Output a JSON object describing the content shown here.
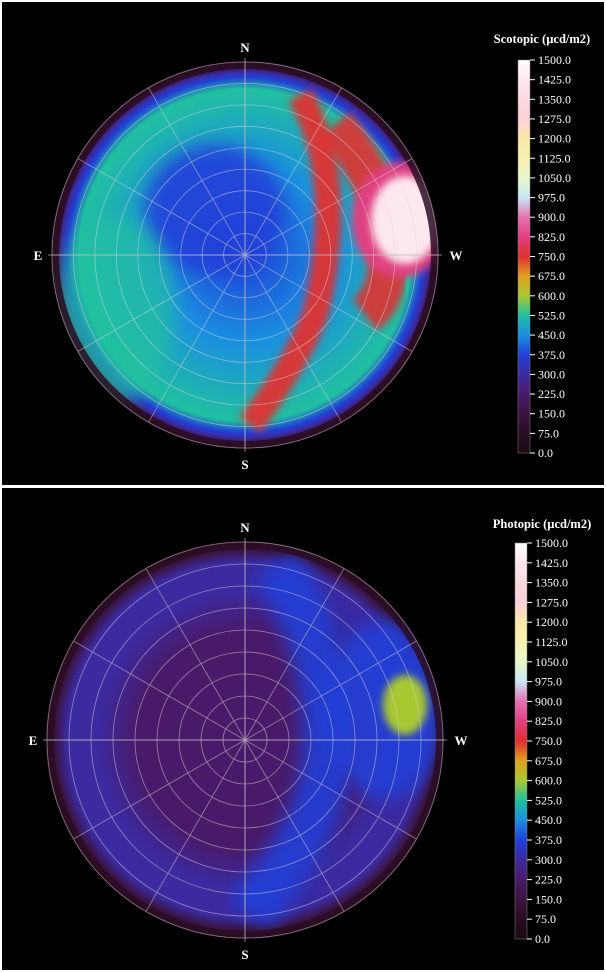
{
  "chart_data": [
    {
      "type": "heatmap",
      "projection": "polar-fisheye-sky",
      "title": "Scotopic (µcd/m2)",
      "compass": {
        "n": "N",
        "s": "S",
        "e": "E",
        "w": "W"
      },
      "scale": {
        "min": 0,
        "max": 1500,
        "ticks": [
          "1500.0",
          "1425.0",
          "1350.0",
          "1275.0",
          "1200.0",
          "1125.0",
          "1050.0",
          "975.0",
          "900.0",
          "825.0",
          "750.0",
          "675.0",
          "600.0",
          "525.0",
          "450.0",
          "375.0",
          "300.0",
          "225.0",
          "150.0",
          "75.0",
          "0.0"
        ]
      },
      "grid": true,
      "description_values": {
        "zenith_region": 380,
        "general_sky": 500,
        "east_horizon_band": 560,
        "west_bright_zone_peak": 1450,
        "west_glow_band": 760,
        "rim": 120
      },
      "colors": {
        "low": "#2a0a22",
        "mid": "#1e3ce0",
        "high": "#ffffff"
      }
    },
    {
      "type": "heatmap",
      "projection": "polar-fisheye-sky",
      "title": "Photopic (µcd/m2)",
      "compass": {
        "n": "N",
        "s": "S",
        "e": "E",
        "w": "W"
      },
      "scale": {
        "min": 0,
        "max": 1500,
        "ticks": [
          "1500.0",
          "1425.0",
          "1350.0",
          "1275.0",
          "1200.0",
          "1125.0",
          "1050.0",
          "975.0",
          "900.0",
          "825.0",
          "750.0",
          "675.0",
          "600.0",
          "525.0",
          "450.0",
          "375.0",
          "300.0",
          "225.0",
          "150.0",
          "75.0",
          "0.0"
        ]
      },
      "grid": true,
      "description_values": {
        "zenith_region": 230,
        "general_sky": 330,
        "west_bright_zone_peak": 660,
        "west_glow_band": 450,
        "rim": 100
      },
      "colors": {
        "low": "#2a0a22",
        "mid": "#3a2a9a",
        "high": "#ffffff"
      }
    }
  ]
}
